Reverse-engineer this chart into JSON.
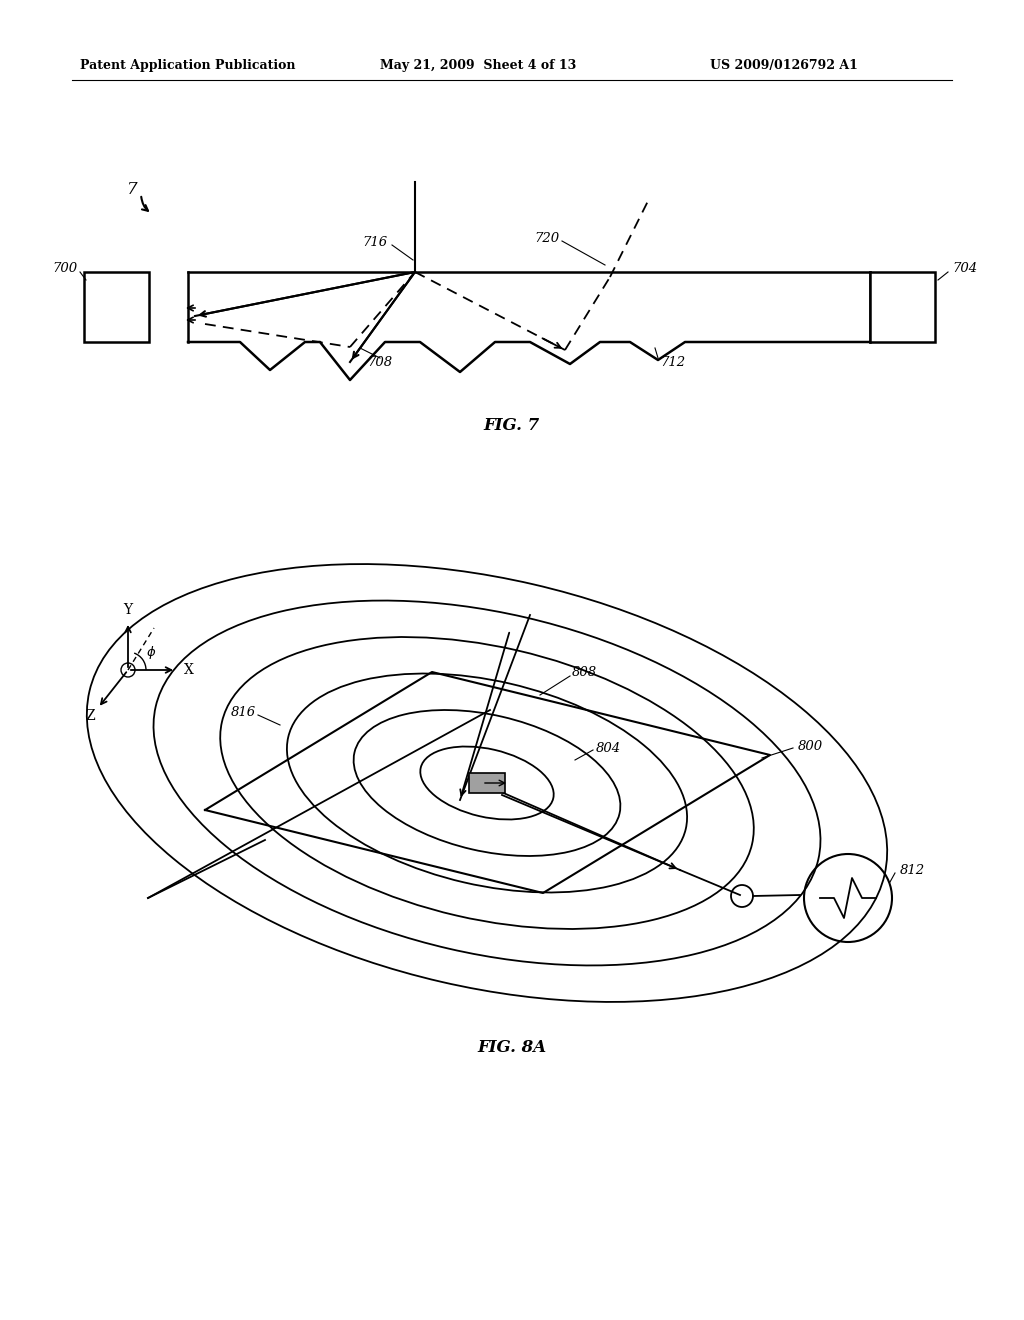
{
  "bg_color": "#ffffff",
  "header_left": "Patent Application Publication",
  "header_center": "May 21, 2009  Sheet 4 of 13",
  "header_right": "US 2009/0126792 A1",
  "fig7_label": "FIG. 7",
  "fig8a_label": "FIG. 8A"
}
